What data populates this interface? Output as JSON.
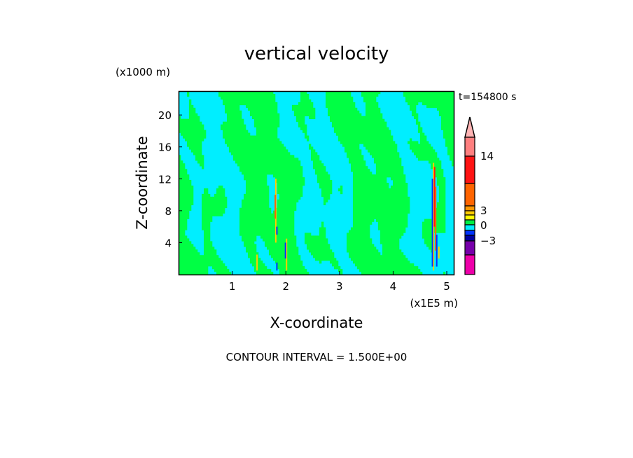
{
  "chart_data": {
    "type": "heatmap",
    "subtype": "filled-contour",
    "title": "vertical velocity",
    "xlabel": "X-coordinate",
    "ylabel": "Z-coordinate",
    "x_unit_label": "(x1E5 m)",
    "y_unit_label": "(x1000 m)",
    "time_label": "t=154800 s",
    "footer": "CONTOUR INTERVAL = 1.500E+00",
    "xlim": [
      0,
      5.13
    ],
    "ylim": [
      0,
      23
    ],
    "xticks": [
      1,
      2,
      3,
      4,
      5
    ],
    "xtick_labels": [
      "1",
      "2",
      "3",
      "4",
      "5"
    ],
    "yticks": [
      4,
      8,
      12,
      16,
      20
    ],
    "ytick_labels": [
      "4",
      "8",
      "12",
      "16",
      "20"
    ],
    "background_levels": {
      "negative_small": "#00eeff",
      "positive_small": "#00ff44"
    },
    "updraft_columns_x": [
      1.8,
      2.0,
      4.75
    ],
    "colorbar": {
      "labels": [
        {
          "text": "14",
          "value": 14
        },
        {
          "text": "3",
          "value": 3
        },
        {
          "text": "0",
          "value": 0
        },
        {
          "text": "-3",
          "value": -3
        }
      ],
      "bands": [
        {
          "color": "#ffb4b4",
          "extend": true
        },
        {
          "color": "#ff7f7f",
          "from": 14,
          "to": 18
        },
        {
          "color": "#ff1414",
          "from": 9,
          "to": 14
        },
        {
          "color": "#ff6400",
          "from": 4.5,
          "to": 9
        },
        {
          "color": "#ff9600",
          "from": 3,
          "to": 4.5
        },
        {
          "color": "#ffcc00",
          "from": 2,
          "to": 3
        },
        {
          "color": "#ffff00",
          "from": 1.5,
          "to": 2
        },
        {
          "color": "#00ee44",
          "from": 0,
          "to": 1.5
        },
        {
          "color": "#00eeff",
          "from": -1.5,
          "to": 0
        },
        {
          "color": "#0033ff",
          "from": -2.25,
          "to": -1.5
        },
        {
          "color": "#0000a0",
          "from": -3,
          "to": -2.25
        },
        {
          "color": "#7700aa",
          "from": -4.5,
          "to": -3
        },
        {
          "color": "#ee00aa",
          "from": -6,
          "to": -4.5
        }
      ]
    }
  }
}
